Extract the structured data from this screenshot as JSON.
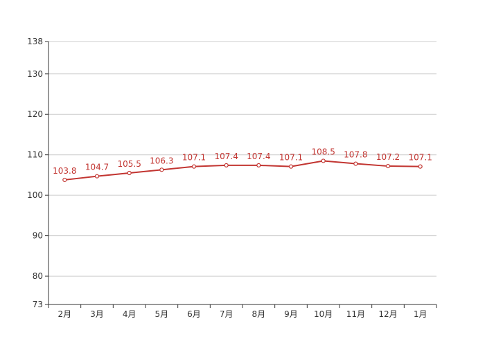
{
  "chart_data": {
    "type": "line",
    "categories": [
      "2月",
      "3月",
      "4月",
      "5月",
      "6月",
      "7月",
      "8月",
      "9月",
      "10月",
      "11月",
      "12月",
      "1月"
    ],
    "values": [
      103.8,
      104.7,
      105.5,
      106.3,
      107.1,
      107.4,
      107.4,
      107.1,
      108.5,
      107.8,
      107.2,
      107.1
    ],
    "value_labels": [
      "103.8",
      "104.7",
      "105.5",
      "106.3",
      "107.1",
      "107.4",
      "107.4",
      "107.1",
      "108.5",
      "107.8",
      "107.2",
      "107.1"
    ],
    "y_ticks": [
      73,
      80,
      90,
      100,
      110,
      120,
      130,
      138
    ],
    "y_tick_labels": [
      "73",
      "80",
      "90",
      "100",
      "110",
      "120",
      "130",
      "138"
    ],
    "ylim": [
      73,
      138
    ],
    "grid": true,
    "line_color": "#c23531",
    "point_fill": "#ffffff",
    "grid_color": "#cccccc",
    "axis_color": "#333333"
  }
}
